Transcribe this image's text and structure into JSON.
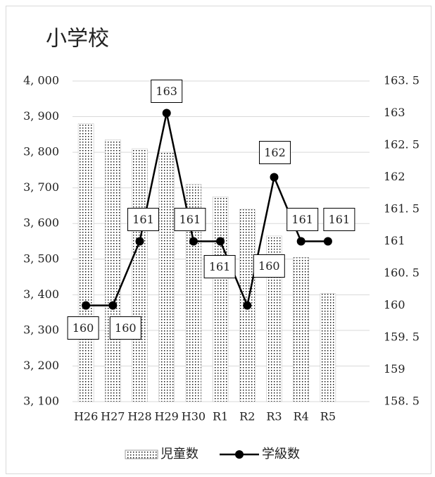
{
  "chart_data": {
    "type": "bar_line",
    "title": "小学校",
    "categories": [
      "H26",
      "H27",
      "H28",
      "H29",
      "H30",
      "R1",
      "R2",
      "R3",
      "R4",
      "R5"
    ],
    "series": [
      {
        "name": "児童数",
        "type": "bar",
        "color": "#000000",
        "values": [
          3880,
          3835,
          3810,
          3800,
          3710,
          3675,
          3640,
          3565,
          3505,
          3403
        ]
      },
      {
        "name": "学級数",
        "type": "line",
        "axis": "y2",
        "color": "#000000",
        "values": [
          160,
          160,
          161,
          163,
          161,
          161,
          160,
          162,
          161,
          161
        ]
      }
    ],
    "ylim": [
      3100,
      4000
    ],
    "yticks": [
      {
        "value": 3100,
        "label": "3, 100"
      },
      {
        "value": 3200,
        "label": "3, 200"
      },
      {
        "value": 3300,
        "label": "3, 300"
      },
      {
        "value": 3400,
        "label": "3, 400"
      },
      {
        "value": 3500,
        "label": "3, 500"
      },
      {
        "value": 3600,
        "label": "3, 600"
      },
      {
        "value": 3700,
        "label": "3, 700"
      },
      {
        "value": 3800,
        "label": "3, 800"
      },
      {
        "value": 3900,
        "label": "3, 900"
      },
      {
        "value": 4000,
        "label": "4, 000"
      }
    ],
    "y2lim": [
      158.5,
      163.5
    ],
    "y2ticks": [
      {
        "value": 158.5,
        "label": "158. 5"
      },
      159,
      {
        "value": 159.5,
        "label": "159. 5"
      },
      160,
      {
        "value": 160.5,
        "label": "160. 5"
      },
      161,
      {
        "value": 161.5,
        "label": "161. 5"
      },
      162,
      {
        "value": 162.5,
        "label": "162. 5"
      },
      163,
      {
        "value": 163.5,
        "label": "163. 5"
      }
    ],
    "grid": true,
    "legend": "bottom"
  }
}
